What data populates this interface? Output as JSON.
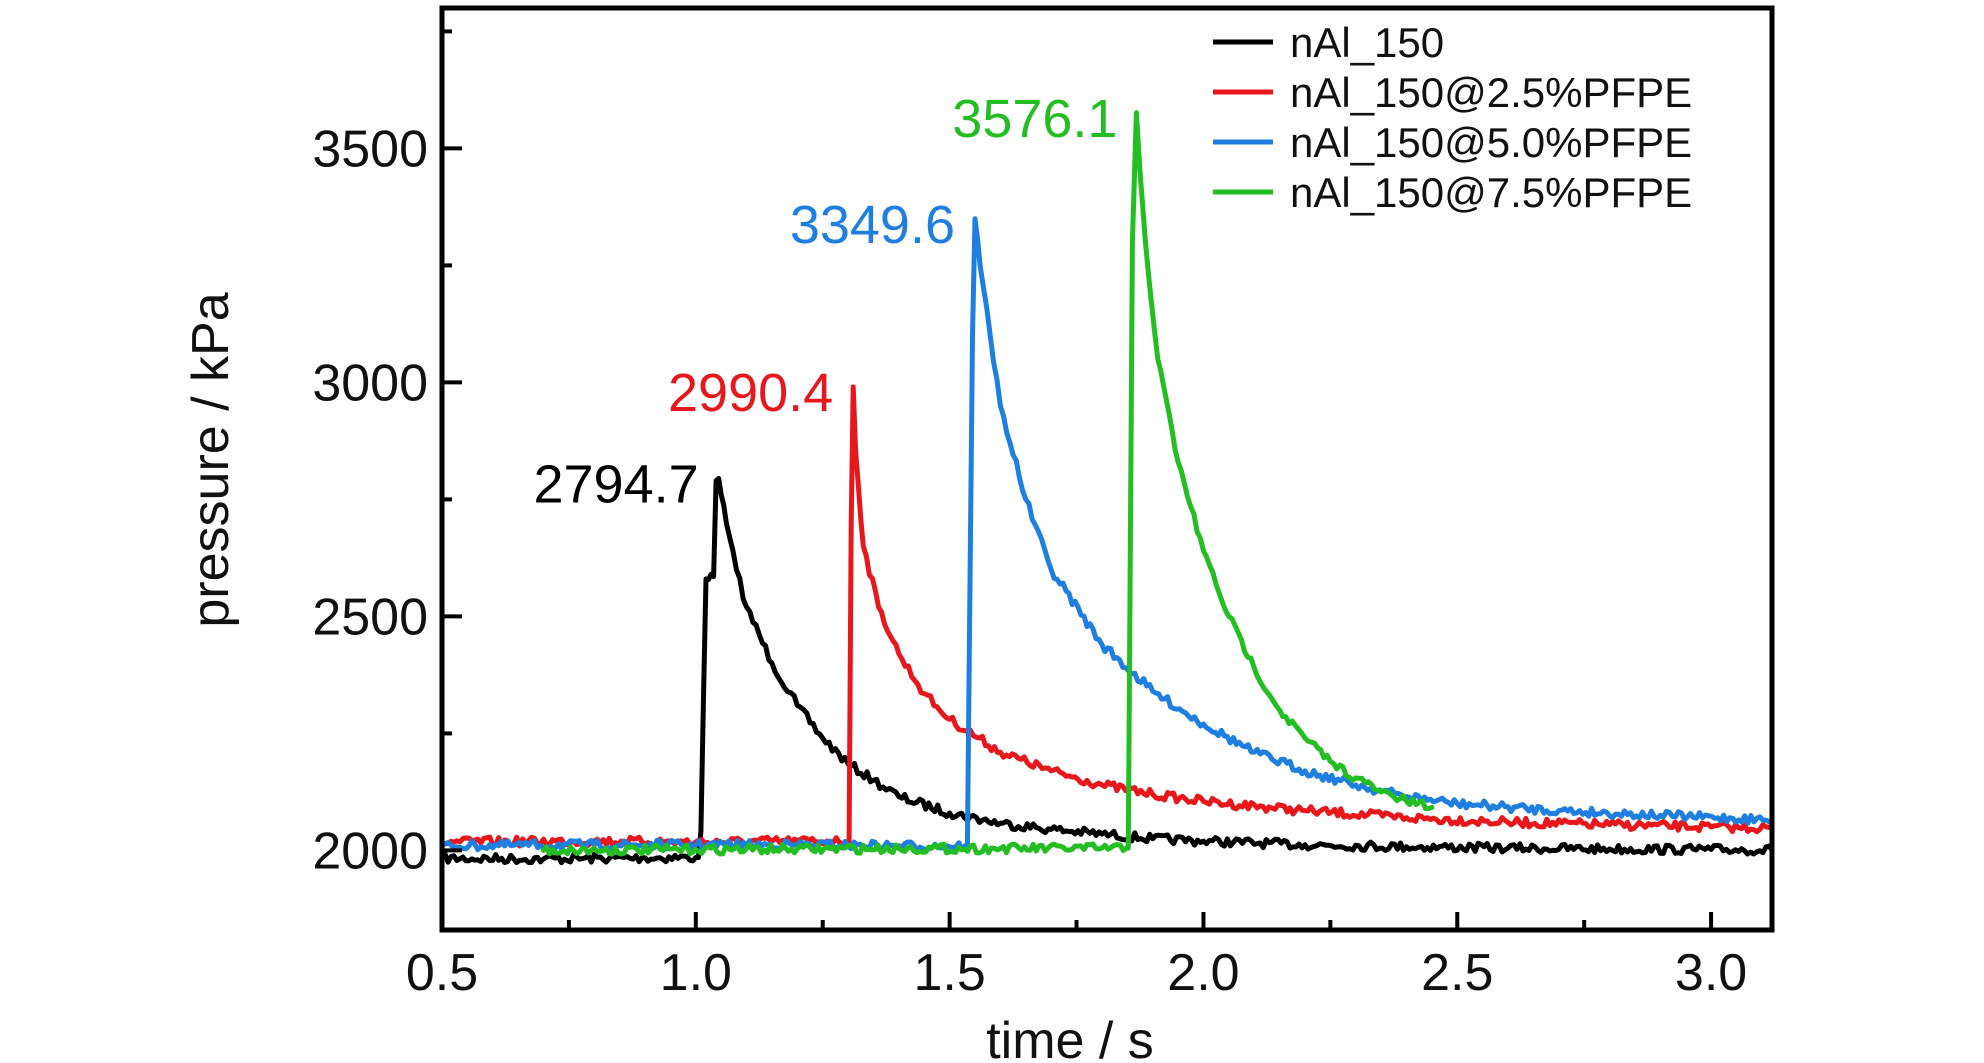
{
  "chart_data": {
    "type": "line",
    "title": "",
    "xlabel": "time / s",
    "ylabel": "pressure / kPa",
    "xlim": [
      0.5,
      3.12
    ],
    "ylim": [
      1830,
      3800
    ],
    "x_ticks": [
      {
        "value": 0.5,
        "label": "0.5"
      },
      {
        "value": 1.0,
        "label": "1.0"
      },
      {
        "value": 1.5,
        "label": "1.5"
      },
      {
        "value": 2.0,
        "label": "2.0"
      },
      {
        "value": 2.5,
        "label": "2.5"
      },
      {
        "value": 3.0,
        "label": "3.0"
      }
    ],
    "y_ticks": [
      {
        "value": 2000,
        "label": "2000"
      },
      {
        "value": 2500,
        "label": "2500"
      },
      {
        "value": 3000,
        "label": "3000"
      },
      {
        "value": 3500,
        "label": "3500"
      }
    ],
    "grid": false,
    "legend_position": "top-right",
    "series": [
      {
        "name": "nAl_150",
        "color": "#000000",
        "peak_label": "2794.7",
        "peak": {
          "x": 1.045,
          "y": 2794.7
        },
        "points": [
          [
            0.5,
            1983
          ],
          [
            0.7,
            1982
          ],
          [
            0.9,
            1984
          ],
          [
            1.0,
            1985
          ],
          [
            1.005,
            1985
          ],
          [
            1.01,
            2040
          ],
          [
            1.02,
            2580
          ],
          [
            1.03,
            2590
          ],
          [
            1.035,
            2585
          ],
          [
            1.04,
            2790
          ],
          [
            1.045,
            2794.7
          ],
          [
            1.05,
            2760
          ],
          [
            1.06,
            2700
          ],
          [
            1.08,
            2600
          ],
          [
            1.1,
            2520
          ],
          [
            1.15,
            2400
          ],
          [
            1.2,
            2310
          ],
          [
            1.25,
            2240
          ],
          [
            1.3,
            2185
          ],
          [
            1.35,
            2150
          ],
          [
            1.4,
            2115
          ],
          [
            1.5,
            2080
          ],
          [
            1.6,
            2058
          ],
          [
            1.7,
            2045
          ],
          [
            1.8,
            2035
          ],
          [
            1.9,
            2025
          ],
          [
            2.0,
            2020
          ],
          [
            2.2,
            2012
          ],
          [
            2.4,
            2008
          ],
          [
            2.6,
            2005
          ],
          [
            2.8,
            2003
          ],
          [
            3.0,
            2002
          ],
          [
            3.12,
            2001
          ]
        ]
      },
      {
        "name": "nAl_150@2.5%PFPE",
        "color": "#e8171b",
        "peak_label": "2990.4",
        "peak": {
          "x": 1.31,
          "y": 2990.4
        },
        "points": [
          [
            0.5,
            2018
          ],
          [
            0.8,
            2020
          ],
          [
            1.0,
            2018
          ],
          [
            1.2,
            2020
          ],
          [
            1.3,
            2020
          ],
          [
            1.302,
            2020
          ],
          [
            1.306,
            2700
          ],
          [
            1.31,
            2990.4
          ],
          [
            1.315,
            2850
          ],
          [
            1.33,
            2650
          ],
          [
            1.36,
            2520
          ],
          [
            1.4,
            2420
          ],
          [
            1.45,
            2335
          ],
          [
            1.5,
            2280
          ],
          [
            1.6,
            2210
          ],
          [
            1.7,
            2170
          ],
          [
            1.8,
            2140
          ],
          [
            1.9,
            2120
          ],
          [
            2.0,
            2105
          ],
          [
            2.2,
            2085
          ],
          [
            2.4,
            2070
          ],
          [
            2.6,
            2060
          ],
          [
            2.8,
            2055
          ],
          [
            3.0,
            2050
          ],
          [
            3.12,
            2048
          ]
        ]
      },
      {
        "name": "nAl_150@5.0%PFPE",
        "color": "#1e7fe0",
        "peak_label": "3349.6",
        "peak": {
          "x": 1.55,
          "y": 3349.6
        },
        "points": [
          [
            0.5,
            2010
          ],
          [
            0.8,
            2012
          ],
          [
            1.0,
            2012
          ],
          [
            1.2,
            2012
          ],
          [
            1.4,
            2010
          ],
          [
            1.53,
            2010
          ],
          [
            1.535,
            2010
          ],
          [
            1.545,
            3100
          ],
          [
            1.55,
            3349.6
          ],
          [
            1.56,
            3250
          ],
          [
            1.58,
            3100
          ],
          [
            1.6,
            2950
          ],
          [
            1.65,
            2750
          ],
          [
            1.7,
            2600
          ],
          [
            1.8,
            2440
          ],
          [
            1.9,
            2340
          ],
          [
            2.0,
            2270
          ],
          [
            2.1,
            2210
          ],
          [
            2.2,
            2170
          ],
          [
            2.3,
            2140
          ],
          [
            2.4,
            2115
          ],
          [
            2.5,
            2100
          ],
          [
            2.7,
            2085
          ],
          [
            2.9,
            2075
          ],
          [
            3.12,
            2065
          ]
        ]
      },
      {
        "name": "nAl_150@7.5%PFPE",
        "color": "#22be22",
        "peak_label": "3576.1",
        "peak": {
          "x": 1.87,
          "y": 3576.1
        },
        "points": [
          [
            0.7,
            2000
          ],
          [
            1.0,
            2002
          ],
          [
            1.2,
            2003
          ],
          [
            1.4,
            2004
          ],
          [
            1.6,
            2004
          ],
          [
            1.8,
            2005
          ],
          [
            1.848,
            2005
          ],
          [
            1.852,
            2005
          ],
          [
            1.86,
            3300
          ],
          [
            1.868,
            3576.1
          ],
          [
            1.875,
            3450
          ],
          [
            1.89,
            3250
          ],
          [
            1.91,
            3050
          ],
          [
            1.95,
            2830
          ],
          [
            2.0,
            2640
          ],
          [
            2.05,
            2500
          ],
          [
            2.1,
            2390
          ],
          [
            2.15,
            2300
          ],
          [
            2.2,
            2240
          ],
          [
            2.25,
            2190
          ],
          [
            2.3,
            2155
          ],
          [
            2.35,
            2125
          ],
          [
            2.4,
            2105
          ],
          [
            2.45,
            2092
          ]
        ]
      }
    ]
  }
}
